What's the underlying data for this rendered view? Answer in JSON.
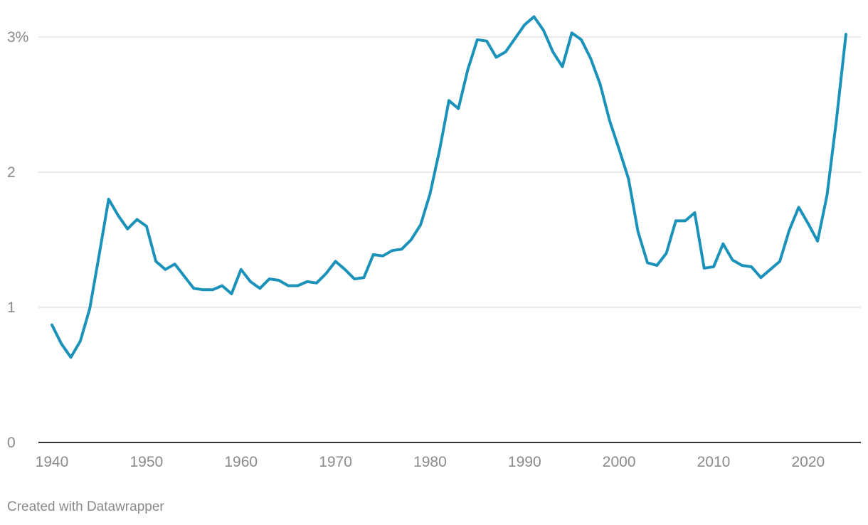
{
  "chart_data": {
    "type": "line",
    "title": "",
    "xlabel": "",
    "ylabel": "",
    "xlim": [
      1940,
      2024
    ],
    "ylim": [
      0,
      3.15
    ],
    "y_ticks": [
      {
        "value": 0,
        "label": "0"
      },
      {
        "value": 1,
        "label": "1"
      },
      {
        "value": 2,
        "label": "2"
      },
      {
        "value": 3,
        "label": "3%"
      }
    ],
    "x_ticks": [
      {
        "value": 1940,
        "label": "1940"
      },
      {
        "value": 1950,
        "label": "1950"
      },
      {
        "value": 1960,
        "label": "1960"
      },
      {
        "value": 1970,
        "label": "1970"
      },
      {
        "value": 1980,
        "label": "1980"
      },
      {
        "value": 1990,
        "label": "1990"
      },
      {
        "value": 2000,
        "label": "2000"
      },
      {
        "value": 2010,
        "label": "2010"
      },
      {
        "value": 2020,
        "label": "2020"
      }
    ],
    "grid": true,
    "legend": "none",
    "series": [
      {
        "color": "#1b92b9",
        "x": [
          1940,
          1941,
          1942,
          1943,
          1944,
          1945,
          1946,
          1947,
          1948,
          1949,
          1950,
          1951,
          1952,
          1953,
          1954,
          1955,
          1956,
          1957,
          1958,
          1959,
          1960,
          1961,
          1962,
          1963,
          1964,
          1965,
          1966,
          1967,
          1968,
          1969,
          1970,
          1971,
          1972,
          1973,
          1974,
          1975,
          1976,
          1977,
          1978,
          1979,
          1980,
          1981,
          1982,
          1983,
          1984,
          1985,
          1986,
          1987,
          1988,
          1989,
          1990,
          1991,
          1992,
          1993,
          1994,
          1995,
          1996,
          1997,
          1998,
          1999,
          2000,
          2001,
          2002,
          2003,
          2004,
          2005,
          2006,
          2007,
          2008,
          2009,
          2010,
          2011,
          2012,
          2013,
          2014,
          2015,
          2016,
          2017,
          2018,
          2019,
          2020,
          2021,
          2022,
          2023,
          2024
        ],
        "values": [
          0.87,
          0.73,
          0.63,
          0.75,
          0.99,
          1.39,
          1.8,
          1.68,
          1.58,
          1.65,
          1.6,
          1.34,
          1.28,
          1.32,
          1.23,
          1.14,
          1.13,
          1.13,
          1.16,
          1.1,
          1.28,
          1.19,
          1.14,
          1.21,
          1.2,
          1.16,
          1.16,
          1.19,
          1.18,
          1.25,
          1.34,
          1.28,
          1.21,
          1.22,
          1.39,
          1.38,
          1.42,
          1.43,
          1.5,
          1.61,
          1.84,
          2.16,
          2.53,
          2.47,
          2.76,
          2.98,
          2.97,
          2.85,
          2.89,
          2.99,
          3.09,
          3.15,
          3.05,
          2.89,
          2.78,
          3.03,
          2.98,
          2.84,
          2.65,
          2.38,
          2.17,
          1.95,
          1.56,
          1.33,
          1.31,
          1.4,
          1.64,
          1.64,
          1.7,
          1.29,
          1.3,
          1.47,
          1.35,
          1.31,
          1.3,
          1.22,
          1.28,
          1.34,
          1.57,
          1.74,
          1.62,
          1.49,
          1.83,
          2.39,
          3.02
        ]
      }
    ]
  },
  "footer": {
    "credit": "Created with Datawrapper"
  }
}
